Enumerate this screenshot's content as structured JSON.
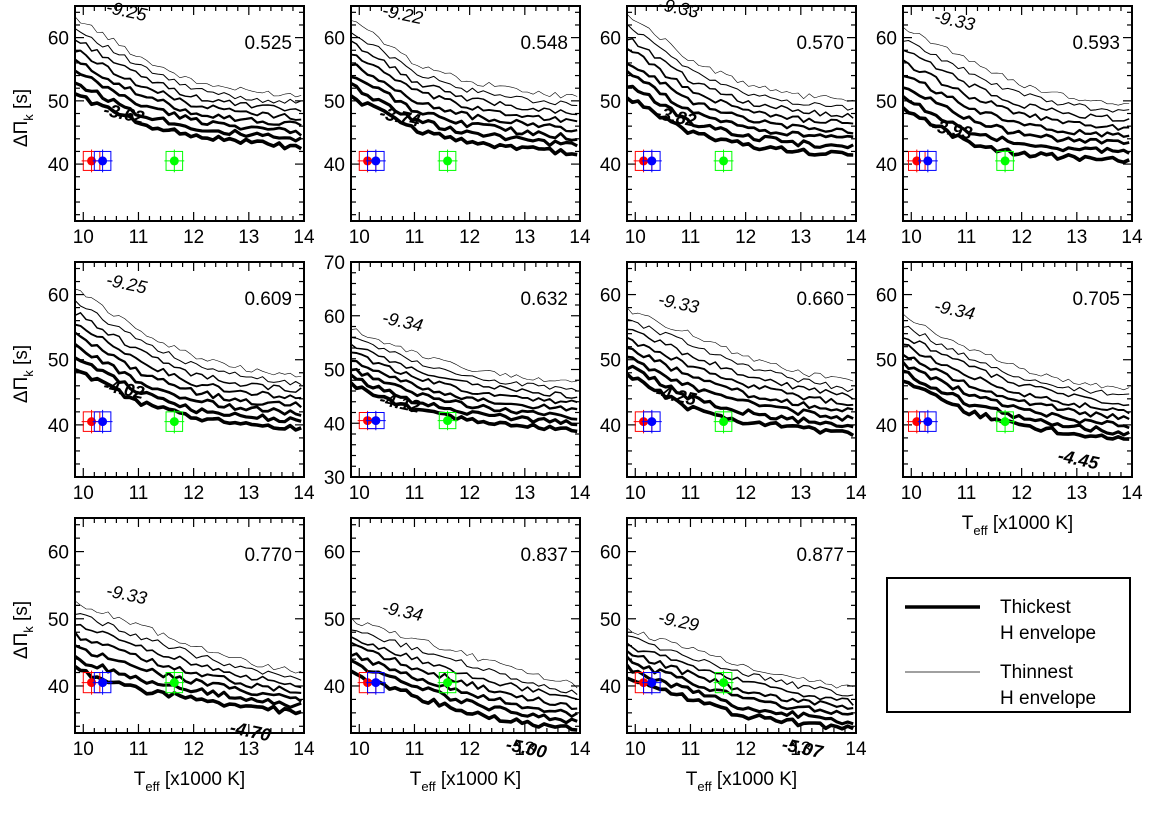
{
  "chart_data": [
    {
      "type": "line",
      "panel_label": "0.525",
      "ytick_labels": [
        "40",
        "50",
        "60"
      ],
      "ylim": [
        31,
        65
      ],
      "yticks": [
        40,
        50,
        60
      ],
      "xtick_labels": [
        "10",
        "11",
        "12",
        "13",
        "14"
      ],
      "xlim": [
        9.85,
        14
      ],
      "xticks": [
        10,
        11,
        12,
        13,
        14
      ],
      "ylabel": "ΔΠk [s]",
      "xlabel": "",
      "thin_label": "-9.25",
      "thick_label": "-3.62",
      "thin_value": -9.25,
      "thick_value": -3.62,
      "series_top": [
        62.5,
        57.0,
        53.0,
        51.5,
        50.8
      ],
      "series_bottom": [
        50.5,
        46.5,
        44.5,
        43.5,
        42.5
      ],
      "n_lines": 8,
      "obs": [
        {
          "color": "#ff0000",
          "x": 10.15,
          "y": 40.5,
          "xerr": 0.15,
          "yerr": 1.5
        },
        {
          "color": "#0000ff",
          "x": 10.35,
          "y": 40.5,
          "xerr": 0.15,
          "yerr": 1.5
        },
        {
          "color": "#00ff00",
          "x": 11.65,
          "y": 40.5,
          "xerr": 0.15,
          "yerr": 1.5
        }
      ]
    },
    {
      "type": "line",
      "panel_label": "0.548",
      "ytick_labels": [
        "40",
        "50",
        "60"
      ],
      "ylim": [
        31,
        65
      ],
      "yticks": [
        40,
        50,
        60
      ],
      "xtick_labels": [
        "10",
        "11",
        "12",
        "13",
        "14"
      ],
      "xlim": [
        9.85,
        14
      ],
      "xticks": [
        10,
        11,
        12,
        13,
        14
      ],
      "ylabel": "",
      "xlabel": "",
      "thin_label": "-9.22",
      "thick_label": "-3.74",
      "thin_value": -9.22,
      "thick_value": -3.74,
      "series_top": [
        62.0,
        56.0,
        53.0,
        51.5,
        50.5
      ],
      "series_bottom": [
        50.0,
        45.5,
        43.5,
        42.5,
        41.5
      ],
      "n_lines": 8,
      "obs": [
        {
          "color": "#ff0000",
          "x": 10.15,
          "y": 40.5,
          "xerr": 0.15,
          "yerr": 1.5
        },
        {
          "color": "#0000ff",
          "x": 10.3,
          "y": 40.5,
          "xerr": 0.15,
          "yerr": 1.5
        },
        {
          "color": "#00ff00",
          "x": 11.6,
          "y": 40.5,
          "xerr": 0.15,
          "yerr": 1.5
        }
      ]
    },
    {
      "type": "line",
      "panel_label": "0.570",
      "ytick_labels": [
        "40",
        "50",
        "60"
      ],
      "ylim": [
        31,
        65
      ],
      "yticks": [
        40,
        50,
        60
      ],
      "xtick_labels": [
        "10",
        "11",
        "12",
        "13",
        "14"
      ],
      "xlim": [
        9.85,
        14
      ],
      "xticks": [
        10,
        11,
        12,
        13,
        14
      ],
      "ylabel": "",
      "xlabel": "",
      "thin_label": "-9.33",
      "thick_label": "-3.82",
      "thin_value": -9.33,
      "thick_value": -3.82,
      "series_top": [
        63.0,
        56.5,
        52.5,
        50.8,
        50.0
      ],
      "series_bottom": [
        50.0,
        45.0,
        43.0,
        42.0,
        41.5
      ],
      "n_lines": 8,
      "obs": [
        {
          "color": "#ff0000",
          "x": 10.15,
          "y": 40.5,
          "xerr": 0.15,
          "yerr": 1.5
        },
        {
          "color": "#0000ff",
          "x": 10.3,
          "y": 40.5,
          "xerr": 0.15,
          "yerr": 1.5
        },
        {
          "color": "#00ff00",
          "x": 11.6,
          "y": 40.5,
          "xerr": 0.15,
          "yerr": 1.5
        }
      ]
    },
    {
      "type": "line",
      "panel_label": "0.593",
      "ytick_labels": [
        "40",
        "50",
        "60"
      ],
      "ylim": [
        31,
        65
      ],
      "yticks": [
        40,
        50,
        60
      ],
      "xtick_labels": [
        "10",
        "11",
        "12",
        "13",
        "14"
      ],
      "xlim": [
        9.85,
        14
      ],
      "xticks": [
        10,
        11,
        12,
        13,
        14
      ],
      "ylabel": "",
      "xlabel": "",
      "thin_label": "-9.33",
      "thick_label": "-3.93",
      "thin_value": -9.33,
      "thick_value": -3.93,
      "series_top": [
        61.0,
        56.5,
        52.5,
        50.5,
        49.5
      ],
      "series_bottom": [
        48.0,
        43.5,
        41.5,
        41.0,
        40.5
      ],
      "n_lines": 8,
      "obs": [
        {
          "color": "#ff0000",
          "x": 10.1,
          "y": 40.5,
          "xerr": 0.15,
          "yerr": 1.5
        },
        {
          "color": "#0000ff",
          "x": 10.3,
          "y": 40.5,
          "xerr": 0.15,
          "yerr": 1.5
        },
        {
          "color": "#00ff00",
          "x": 11.7,
          "y": 40.5,
          "xerr": 0.15,
          "yerr": 1.5
        }
      ]
    },
    {
      "type": "line",
      "panel_label": "0.609",
      "ytick_labels": [
        "40",
        "50",
        "60"
      ],
      "ylim": [
        32,
        65
      ],
      "yticks": [
        40,
        50,
        60
      ],
      "xtick_labels": [
        "10",
        "11",
        "12",
        "13",
        "14"
      ],
      "xlim": [
        9.85,
        14
      ],
      "xticks": [
        10,
        11,
        12,
        13,
        14
      ],
      "ylabel": "ΔΠk [s]",
      "xlabel": "",
      "thin_label": "-9.25",
      "thick_label": "-4.02",
      "thin_value": -9.25,
      "thick_value": -4.02,
      "series_top": [
        60.0,
        54.5,
        50.5,
        48.5,
        47.5
      ],
      "series_bottom": [
        48.0,
        43.5,
        41.0,
        40.0,
        39.5
      ],
      "n_lines": 8,
      "obs": [
        {
          "color": "#ff0000",
          "x": 10.15,
          "y": 40.5,
          "xerr": 0.15,
          "yerr": 1.5
        },
        {
          "color": "#0000ff",
          "x": 10.35,
          "y": 40.5,
          "xerr": 0.15,
          "yerr": 1.5
        },
        {
          "color": "#00ff00",
          "x": 11.65,
          "y": 40.5,
          "xerr": 0.15,
          "yerr": 1.5
        }
      ]
    },
    {
      "type": "line",
      "panel_label": "0.632",
      "ytick_labels": [
        "30",
        "40",
        "50",
        "60",
        "70"
      ],
      "ylim": [
        30,
        70
      ],
      "yticks": [
        30,
        40,
        50,
        60,
        70
      ],
      "xtick_labels": [
        "10",
        "11",
        "12",
        "13",
        "14"
      ],
      "xlim": [
        9.85,
        14
      ],
      "xticks": [
        10,
        11,
        12,
        13,
        14
      ],
      "ylabel": "",
      "xlabel": "",
      "thin_label": "-9.34",
      "thick_label": "-4.12",
      "thin_value": -9.34,
      "thick_value": -4.12,
      "series_top": [
        57.0,
        53.0,
        50.0,
        48.5,
        47.5
      ],
      "series_bottom": [
        46.5,
        42.5,
        40.5,
        39.5,
        38.5
      ],
      "n_lines": 8,
      "obs": [
        {
          "color": "#ff0000",
          "x": 10.15,
          "y": 40.5,
          "xerr": 0.15,
          "yerr": 1.5
        },
        {
          "color": "#0000ff",
          "x": 10.3,
          "y": 40.5,
          "xerr": 0.15,
          "yerr": 1.5
        },
        {
          "color": "#00ff00",
          "x": 11.6,
          "y": 40.5,
          "xerr": 0.15,
          "yerr": 1.5
        }
      ]
    },
    {
      "type": "line",
      "panel_label": "0.660",
      "ytick_labels": [
        "40",
        "50",
        "60"
      ],
      "ylim": [
        32,
        65
      ],
      "yticks": [
        40,
        50,
        60
      ],
      "xtick_labels": [
        "10",
        "11",
        "12",
        "13",
        "14"
      ],
      "xlim": [
        9.85,
        14
      ],
      "xticks": [
        10,
        11,
        12,
        13,
        14
      ],
      "ylabel": "",
      "xlabel": "",
      "thin_label": "-9.33",
      "thick_label": "-4.25",
      "thin_value": -9.33,
      "thick_value": -4.25,
      "series_top": [
        57.0,
        54.0,
        50.5,
        48.0,
        46.5
      ],
      "series_bottom": [
        47.0,
        42.5,
        40.5,
        39.5,
        38.5
      ],
      "n_lines": 8,
      "obs": [
        {
          "color": "#ff0000",
          "x": 10.15,
          "y": 40.5,
          "xerr": 0.15,
          "yerr": 1.5
        },
        {
          "color": "#0000ff",
          "x": 10.3,
          "y": 40.5,
          "xerr": 0.15,
          "yerr": 1.5
        },
        {
          "color": "#00ff00",
          "x": 11.6,
          "y": 40.5,
          "xerr": 0.15,
          "yerr": 1.5
        }
      ]
    },
    {
      "type": "line",
      "panel_label": "0.705",
      "ytick_labels": [
        "40",
        "50",
        "60"
      ],
      "ylim": [
        32,
        65
      ],
      "yticks": [
        40,
        50,
        60
      ],
      "xtick_labels": [
        "10",
        "11",
        "12",
        "13",
        "14"
      ],
      "xlim": [
        9.85,
        14
      ],
      "xticks": [
        10,
        11,
        12,
        13,
        14
      ],
      "ylabel": "",
      "xlabel": "Teff [x1000 K]",
      "thin_label": "-9.34",
      "thick_label": "-4.45",
      "thin_value": -9.34,
      "thick_value": -4.45,
      "series_top": [
        56.0,
        52.0,
        48.5,
        46.5,
        45.5
      ],
      "series_bottom": [
        46.0,
        42.0,
        40.0,
        38.5,
        37.5
      ],
      "n_lines": 8,
      "obs": [
        {
          "color": "#ff0000",
          "x": 10.1,
          "y": 40.5,
          "xerr": 0.15,
          "yerr": 1.5
        },
        {
          "color": "#0000ff",
          "x": 10.3,
          "y": 40.5,
          "xerr": 0.15,
          "yerr": 1.5
        },
        {
          "color": "#00ff00",
          "x": 11.7,
          "y": 40.5,
          "xerr": 0.15,
          "yerr": 1.5
        }
      ]
    },
    {
      "type": "line",
      "panel_label": "0.770",
      "ytick_labels": [
        "40",
        "50",
        "60"
      ],
      "ylim": [
        33,
        65
      ],
      "yticks": [
        40,
        50,
        60
      ],
      "xtick_labels": [
        "10",
        "11",
        "12",
        "13",
        "14"
      ],
      "xlim": [
        9.85,
        14
      ],
      "xticks": [
        10,
        11,
        12,
        13,
        14
      ],
      "ylabel": "ΔΠk [s]",
      "xlabel": "Teff [x1000 K]",
      "thin_label": "-9.33",
      "thick_label": "-4.70",
      "thin_value": -9.33,
      "thick_value": -4.7,
      "series_top": [
        52.0,
        49.0,
        46.0,
        43.5,
        42.0
      ],
      "series_bottom": [
        42.0,
        39.5,
        38.0,
        37.0,
        36.0
      ],
      "n_lines": 7,
      "obs": [
        {
          "color": "#ff0000",
          "x": 10.15,
          "y": 40.5,
          "xerr": 0.15,
          "yerr": 1.5
        },
        {
          "color": "#0000ff",
          "x": 10.35,
          "y": 40.5,
          "xerr": 0.15,
          "yerr": 1.5
        },
        {
          "color": "#00ff00",
          "x": 11.65,
          "y": 40.5,
          "xerr": 0.15,
          "yerr": 1.5
        }
      ]
    },
    {
      "type": "line",
      "panel_label": "0.837",
      "ytick_labels": [
        "40",
        "50",
        "60"
      ],
      "ylim": [
        33,
        65
      ],
      "yticks": [
        40,
        50,
        60
      ],
      "xtick_labels": [
        "10",
        "11",
        "12",
        "13",
        "14"
      ],
      "xlim": [
        9.85,
        14
      ],
      "xticks": [
        10,
        11,
        12,
        13,
        14
      ],
      "ylabel": "",
      "xlabel": "Teff [x1000 K]",
      "thin_label": "-9.34",
      "thick_label": "-5.00",
      "thin_value": -9.34,
      "thick_value": -5.0,
      "series_top": [
        49.5,
        47.0,
        44.5,
        42.0,
        40.0
      ],
      "series_bottom": [
        41.5,
        38.5,
        36.0,
        34.5,
        33.5
      ],
      "n_lines": 7,
      "obs": [
        {
          "color": "#ff0000",
          "x": 10.15,
          "y": 40.5,
          "xerr": 0.15,
          "yerr": 1.5
        },
        {
          "color": "#0000ff",
          "x": 10.3,
          "y": 40.5,
          "xerr": 0.15,
          "yerr": 1.5
        },
        {
          "color": "#00ff00",
          "x": 11.6,
          "y": 40.5,
          "xerr": 0.15,
          "yerr": 1.5
        }
      ]
    },
    {
      "type": "line",
      "panel_label": "0.877",
      "ytick_labels": [
        "40",
        "50",
        "60"
      ],
      "ylim": [
        33,
        65
      ],
      "yticks": [
        40,
        50,
        60
      ],
      "xtick_labels": [
        "10",
        "11",
        "12",
        "13",
        "14"
      ],
      "xlim": [
        9.85,
        14
      ],
      "xticks": [
        10,
        11,
        12,
        13,
        14
      ],
      "ylabel": "",
      "xlabel": "Teff [x1000 K]",
      "thin_label": "-9.29",
      "thick_label": "-5.07",
      "thin_value": -9.29,
      "thick_value": -5.07,
      "series_top": [
        48.0,
        45.5,
        43.0,
        41.0,
        39.5
      ],
      "series_bottom": [
        41.0,
        38.0,
        35.5,
        34.5,
        33.5
      ],
      "n_lines": 7,
      "obs": [
        {
          "color": "#ff0000",
          "x": 10.15,
          "y": 40.5,
          "xerr": 0.15,
          "yerr": 1.5
        },
        {
          "color": "#0000ff",
          "x": 10.3,
          "y": 40.5,
          "xerr": 0.15,
          "yerr": 1.5
        },
        {
          "color": "#00ff00",
          "x": 11.6,
          "y": 40.5,
          "xerr": 0.15,
          "yerr": 1.5
        }
      ]
    }
  ],
  "legend": {
    "thick_line1": "Thickest",
    "thick_line2": "H envelope",
    "thin_line1": "Thinnest",
    "thin_line2": "H envelope"
  }
}
